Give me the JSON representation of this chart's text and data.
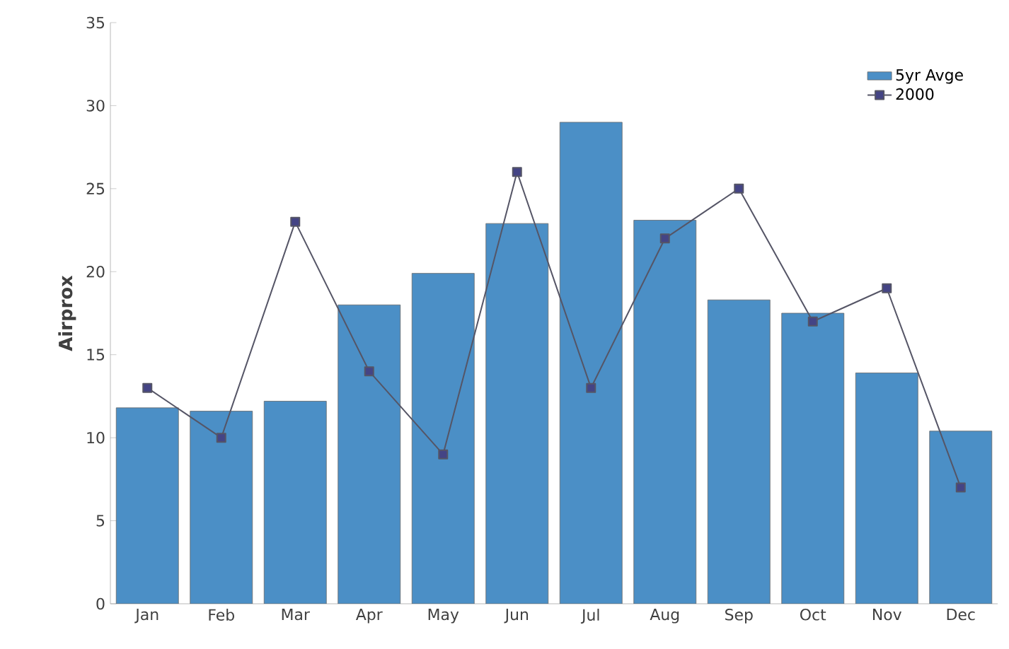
{
  "chart_data": {
    "type": "bar",
    "ylabel": "Airprox",
    "categories": [
      "Jan",
      "Feb",
      "Mar",
      "Apr",
      "May",
      "Jun",
      "Jul",
      "Aug",
      "Sep",
      "Oct",
      "Nov",
      "Dec"
    ],
    "series": [
      {
        "name": "5yr Avge",
        "color": "#4b8fc6",
        "values": [
          11.8,
          11.6,
          12.2,
          18.0,
          19.9,
          22.9,
          29.0,
          23.1,
          18.3,
          17.5,
          13.9,
          10.4
        ]
      },
      {
        "name": "2000",
        "type": "line",
        "color": "#555566",
        "marker": "square",
        "values": [
          13,
          10,
          23,
          14,
          9,
          26,
          13,
          22,
          25,
          17,
          19,
          7
        ]
      }
    ],
    "ylim": [
      0,
      35
    ],
    "yticks": [
      0,
      5,
      10,
      15,
      20,
      25,
      30,
      35
    ],
    "grid": false,
    "legend": "top right"
  }
}
